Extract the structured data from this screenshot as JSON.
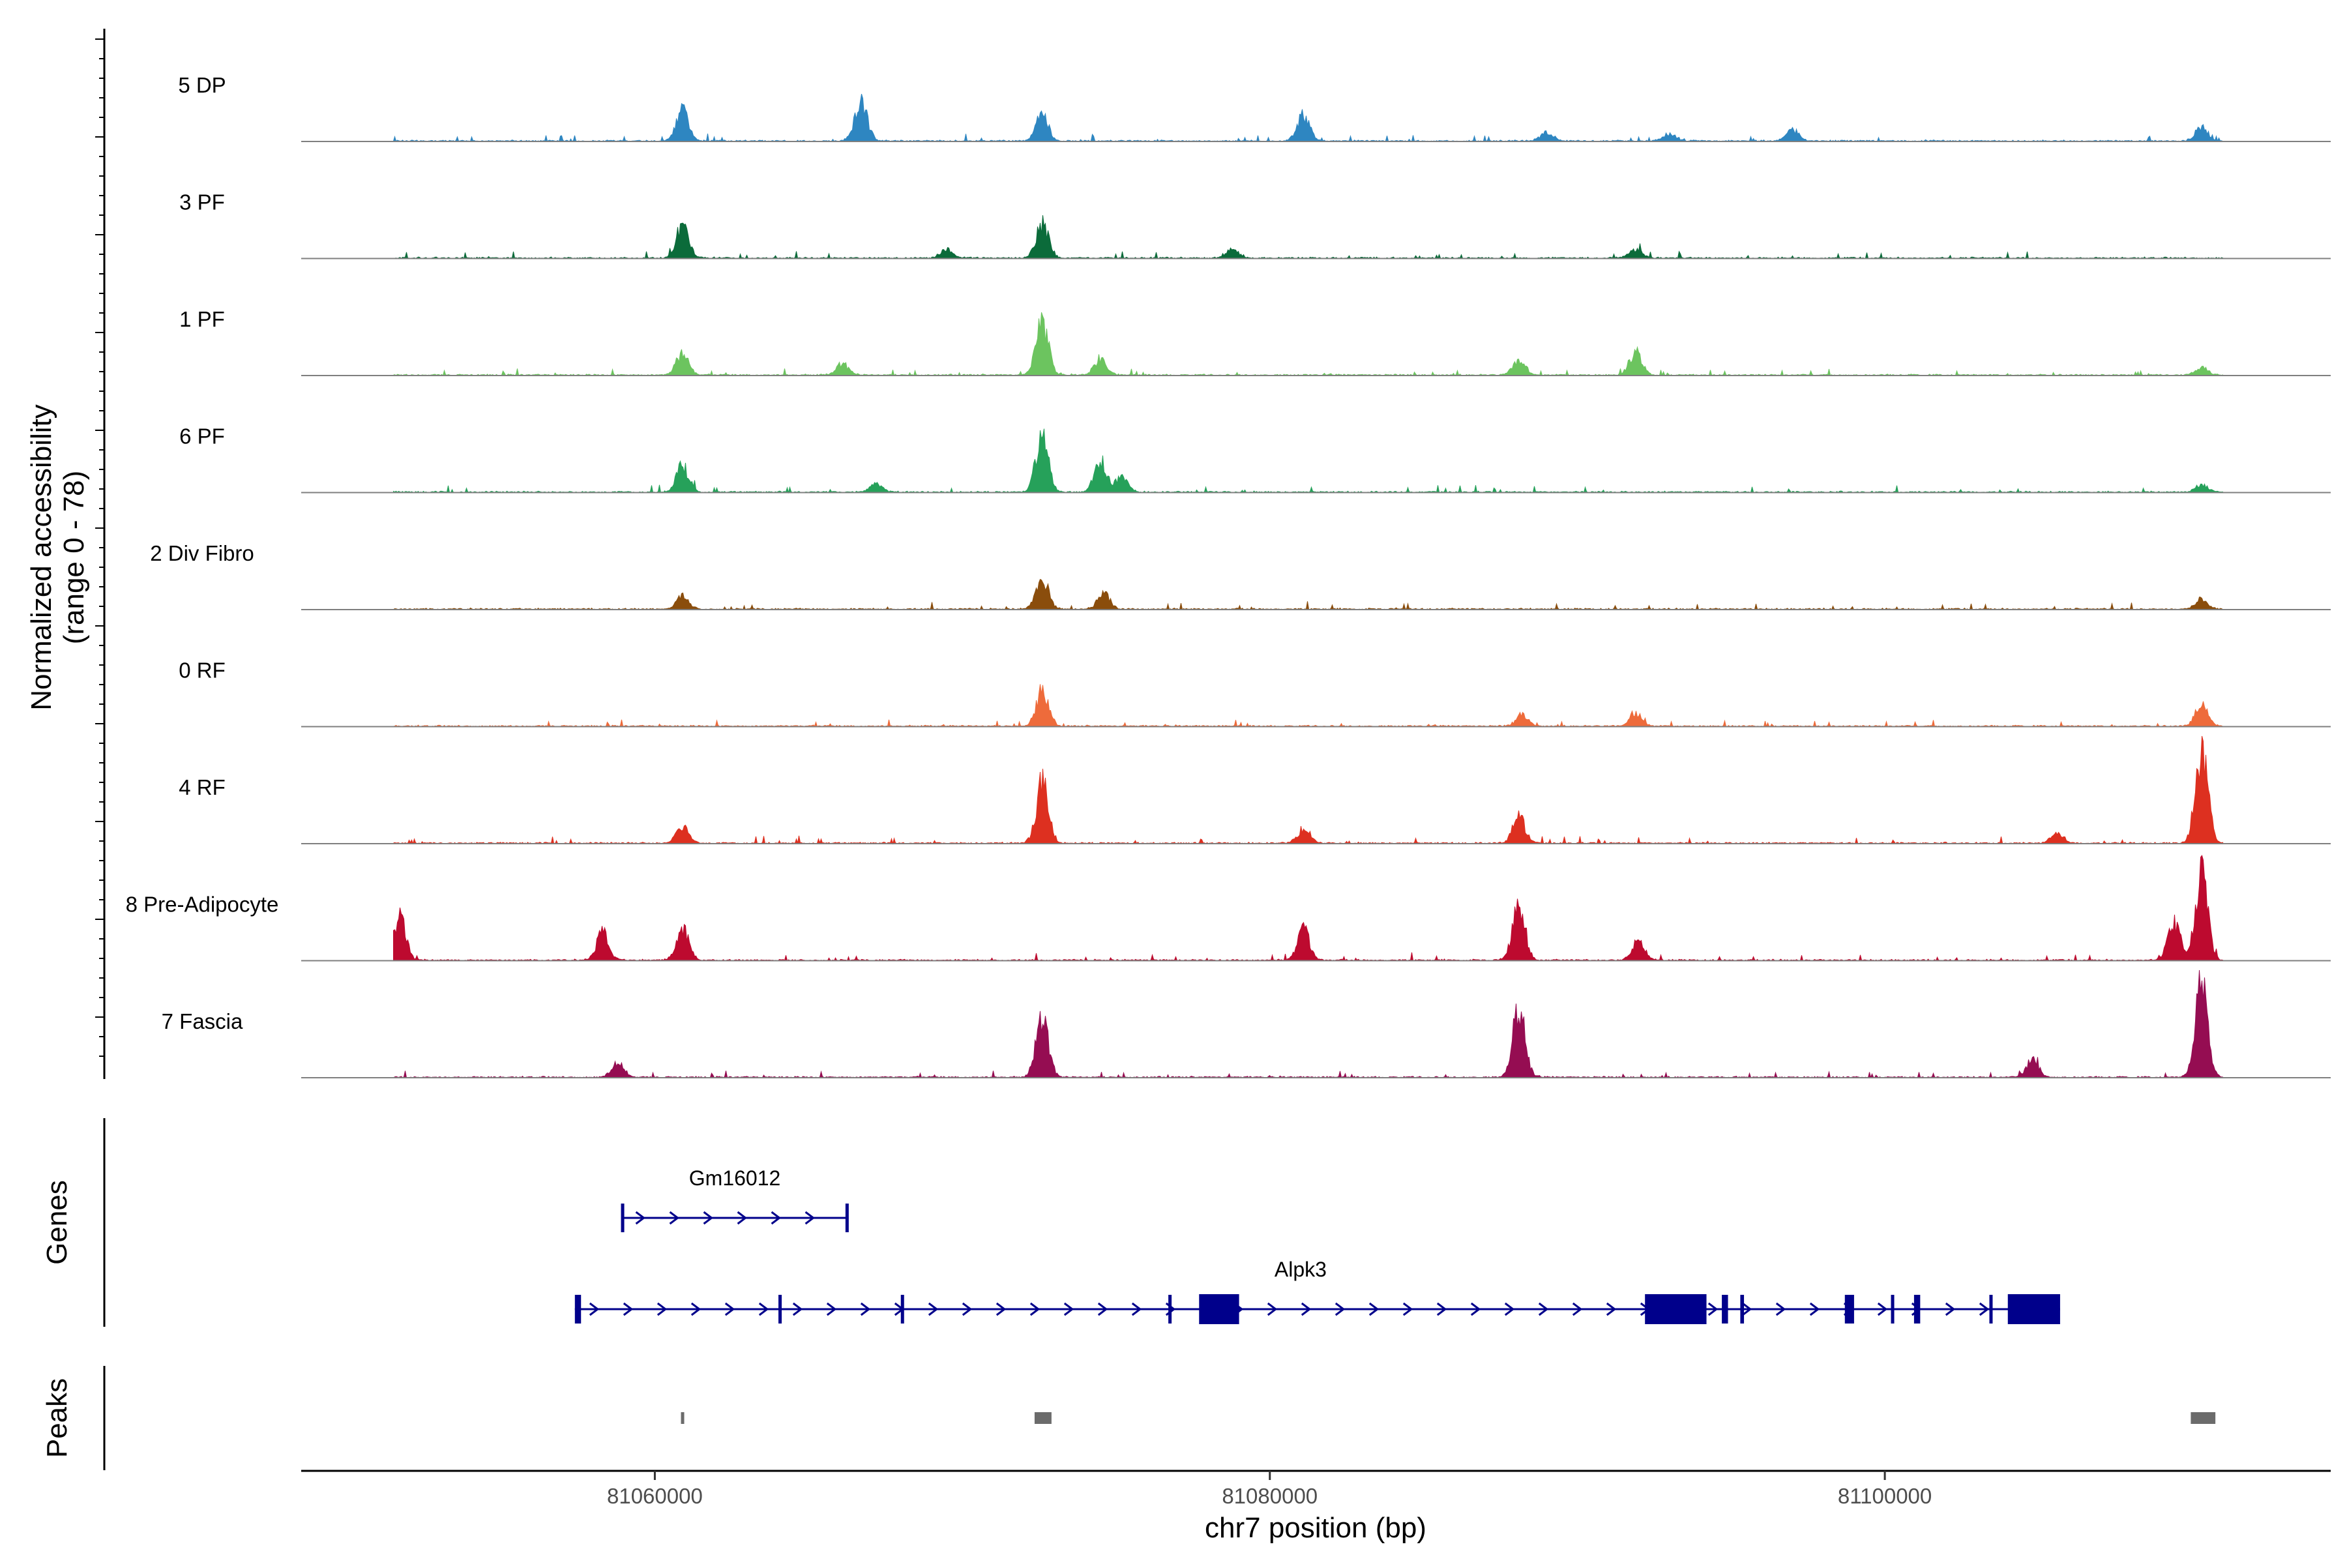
{
  "chart_data": {
    "type": "area",
    "title": "",
    "chromosome": "chr7",
    "xlabel": "chr7 position (bp)",
    "ylabel_line1": "Normalized accessibility",
    "ylabel_line2": "(range 0 - 78)",
    "y_range": [
      0,
      78
    ],
    "xlim": [
      81048500,
      81114500
    ],
    "x_ticks": [
      81060000,
      81080000,
      81100000
    ],
    "x_tick_labels": [
      "81060000",
      "81080000",
      "81100000"
    ],
    "data_start": 81051500,
    "data_end": 81111000,
    "tracks": [
      {
        "name": "5 DP",
        "color": "#2e86c1",
        "peaks": [
          [
            81060900,
            0.28
          ],
          [
            81066700,
            0.38
          ],
          [
            81072600,
            0.24
          ],
          [
            81081100,
            0.24
          ],
          [
            81110300,
            0.12
          ],
          [
            81089000,
            0.08
          ],
          [
            81097000,
            0.1
          ],
          [
            81093000,
            0.06
          ]
        ]
      },
      {
        "name": "3 PF",
        "color": "#0b6b3a",
        "peaks": [
          [
            81060900,
            0.3
          ],
          [
            81072600,
            0.32
          ],
          [
            81069500,
            0.08
          ],
          [
            81078800,
            0.08
          ],
          [
            81091900,
            0.08
          ]
        ]
      },
      {
        "name": "1 PF",
        "color": "#6cc45f",
        "peaks": [
          [
            81060900,
            0.2
          ],
          [
            81066100,
            0.1
          ],
          [
            81072600,
            0.48
          ],
          [
            81074500,
            0.15
          ],
          [
            81088100,
            0.14
          ],
          [
            81091900,
            0.22
          ],
          [
            81110300,
            0.07
          ]
        ]
      },
      {
        "name": "6 PF",
        "color": "#26a15a",
        "peaks": [
          [
            81060900,
            0.24
          ],
          [
            81072600,
            0.55
          ],
          [
            81074500,
            0.28
          ],
          [
            81075200,
            0.14
          ],
          [
            81067200,
            0.08
          ],
          [
            81110300,
            0.07
          ]
        ]
      },
      {
        "name": "2 Div Fibro",
        "color": "#8a4d0c",
        "peaks": [
          [
            81060900,
            0.12
          ],
          [
            81072600,
            0.26
          ],
          [
            81074600,
            0.14
          ],
          [
            81110300,
            0.09
          ]
        ]
      },
      {
        "name": "0 RF",
        "color": "#ee6b3b",
        "peaks": [
          [
            81072600,
            0.33
          ],
          [
            81088200,
            0.1
          ],
          [
            81091900,
            0.12
          ],
          [
            81110300,
            0.2
          ]
        ]
      },
      {
        "name": "4 RF",
        "color": "#dd3020",
        "peaks": [
          [
            81060900,
            0.16
          ],
          [
            81072600,
            0.55
          ],
          [
            81081100,
            0.12
          ],
          [
            81088100,
            0.24
          ],
          [
            81105600,
            0.08
          ],
          [
            81110300,
            0.88
          ]
        ]
      },
      {
        "name": "8 Pre-Adipocyte",
        "color": "#bd0a2f",
        "peaks": [
          [
            81051700,
            0.38
          ],
          [
            81058300,
            0.25
          ],
          [
            81060900,
            0.28
          ],
          [
            81081100,
            0.28
          ],
          [
            81088100,
            0.5
          ],
          [
            81110300,
            0.82
          ],
          [
            81109400,
            0.35
          ],
          [
            81092000,
            0.18
          ]
        ]
      },
      {
        "name": "7 Fascia",
        "color": "#950d52",
        "peaks": [
          [
            81072600,
            0.55
          ],
          [
            81088100,
            0.62
          ],
          [
            81110300,
            0.92
          ],
          [
            81058800,
            0.14
          ],
          [
            81104800,
            0.16
          ]
        ]
      }
    ],
    "genes_label": "Genes",
    "peaks_label": "Peaks",
    "genes": [
      {
        "name": "Gm16012",
        "start": 81058900,
        "end": 81066300,
        "color": "#00008b",
        "exons": [
          [
            81058900,
            81059000
          ],
          [
            81066200,
            81066300
          ]
        ]
      },
      {
        "name": "Alpk3",
        "start": 81057400,
        "end": 81105700,
        "color": "#00008b",
        "exons": [
          [
            81057400,
            81057600
          ],
          [
            81064020,
            81064060
          ],
          [
            81068000,
            81068100
          ],
          [
            81076700,
            81076780
          ],
          [
            81077700,
            81079000
          ],
          [
            81092200,
            81094200
          ],
          [
            81094700,
            81094900
          ],
          [
            81095300,
            81095420
          ],
          [
            81098700,
            81099000
          ],
          [
            81100200,
            81100260
          ],
          [
            81100950,
            81101150
          ],
          [
            81103400,
            81103480
          ],
          [
            81104000,
            81105700
          ]
        ]
      }
    ],
    "called_peaks": [
      {
        "start": 81060850,
        "end": 81060950
      },
      {
        "start": 81072350,
        "end": 81072900
      },
      {
        "start": 81109950,
        "end": 81110750
      }
    ]
  }
}
